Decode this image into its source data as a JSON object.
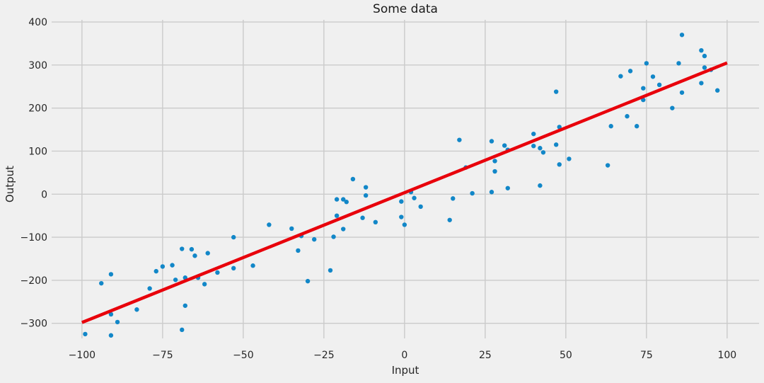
{
  "chart_data": {
    "type": "scatter",
    "title": "Some data",
    "xlabel": "Input",
    "ylabel": "Output",
    "x_ticks": [
      -100,
      -75,
      -50,
      -25,
      0,
      25,
      50,
      75,
      100
    ],
    "y_ticks": [
      -300,
      -200,
      -100,
      0,
      100,
      200,
      300,
      400
    ],
    "xlim": [
      -109.4,
      109.9
    ],
    "ylim": [
      -335,
      405
    ],
    "grid": true,
    "legend": false,
    "points": [
      [
        -99,
        -325
      ],
      [
        -94,
        -207
      ],
      [
        -91,
        -328
      ],
      [
        -91,
        -279
      ],
      [
        -91,
        -186
      ],
      [
        -89,
        -297
      ],
      [
        -83,
        -268
      ],
      [
        -79,
        -219
      ],
      [
        -77,
        -179
      ],
      [
        -75,
        -168
      ],
      [
        -72,
        -165
      ],
      [
        -71,
        -199
      ],
      [
        -69,
        -315
      ],
      [
        -69,
        -127
      ],
      [
        -68,
        -259
      ],
      [
        -68,
        -194
      ],
      [
        -66,
        -128
      ],
      [
        -65,
        -143
      ],
      [
        -64,
        -194
      ],
      [
        -62,
        -209
      ],
      [
        -61,
        -137
      ],
      [
        -58,
        -182
      ],
      [
        -53,
        -172
      ],
      [
        -53,
        -100
      ],
      [
        -47,
        -166
      ],
      [
        -42,
        -71
      ],
      [
        -35,
        -80
      ],
      [
        -33,
        -131
      ],
      [
        -32,
        -97
      ],
      [
        -30,
        -202
      ],
      [
        -28,
        -105
      ],
      [
        -23,
        -177
      ],
      [
        -22,
        -99
      ],
      [
        -21,
        -50
      ],
      [
        -21,
        -12
      ],
      [
        -19,
        -81
      ],
      [
        -19,
        -12
      ],
      [
        -18,
        -18
      ],
      [
        -16,
        35
      ],
      [
        -13,
        -55
      ],
      [
        -12,
        16
      ],
      [
        -12,
        -3
      ],
      [
        -9,
        -65
      ],
      [
        -1,
        -53
      ],
      [
        -1,
        -17
      ],
      [
        0,
        -71
      ],
      [
        2,
        5
      ],
      [
        3,
        -9
      ],
      [
        5,
        -29
      ],
      [
        14,
        -60
      ],
      [
        15,
        -10
      ],
      [
        17,
        126
      ],
      [
        19,
        62
      ],
      [
        21,
        2
      ],
      [
        27,
        123
      ],
      [
        27,
        5
      ],
      [
        28,
        77
      ],
      [
        28,
        53
      ],
      [
        31,
        113
      ],
      [
        32,
        103
      ],
      [
        32,
        14
      ],
      [
        40,
        140
      ],
      [
        40,
        112
      ],
      [
        42,
        107
      ],
      [
        42,
        20
      ],
      [
        43,
        97
      ],
      [
        47,
        238
      ],
      [
        47,
        115
      ],
      [
        48,
        156
      ],
      [
        48,
        69
      ],
      [
        51,
        82
      ],
      [
        63,
        67
      ],
      [
        64,
        158
      ],
      [
        67,
        274
      ],
      [
        69,
        181
      ],
      [
        70,
        286
      ],
      [
        72,
        158
      ],
      [
        74,
        246
      ],
      [
        74,
        219
      ],
      [
        75,
        304
      ],
      [
        77,
        273
      ],
      [
        79,
        254
      ],
      [
        83,
        200
      ],
      [
        85,
        304
      ],
      [
        86,
        370
      ],
      [
        86,
        236
      ],
      [
        92,
        334
      ],
      [
        92,
        258
      ],
      [
        93,
        321
      ],
      [
        93,
        294
      ],
      [
        95,
        289
      ],
      [
        97,
        241
      ]
    ],
    "trend_line": {
      "x": [
        -100,
        100
      ],
      "y": [
        -298,
        305
      ]
    },
    "colors": {
      "background": "#f0f0f0",
      "grid": "#cbcbcb",
      "text": "#262626",
      "scatter": "#1287c8",
      "line": "#e8000b"
    },
    "point_radius": 3.2,
    "line_width": 4.5
  }
}
